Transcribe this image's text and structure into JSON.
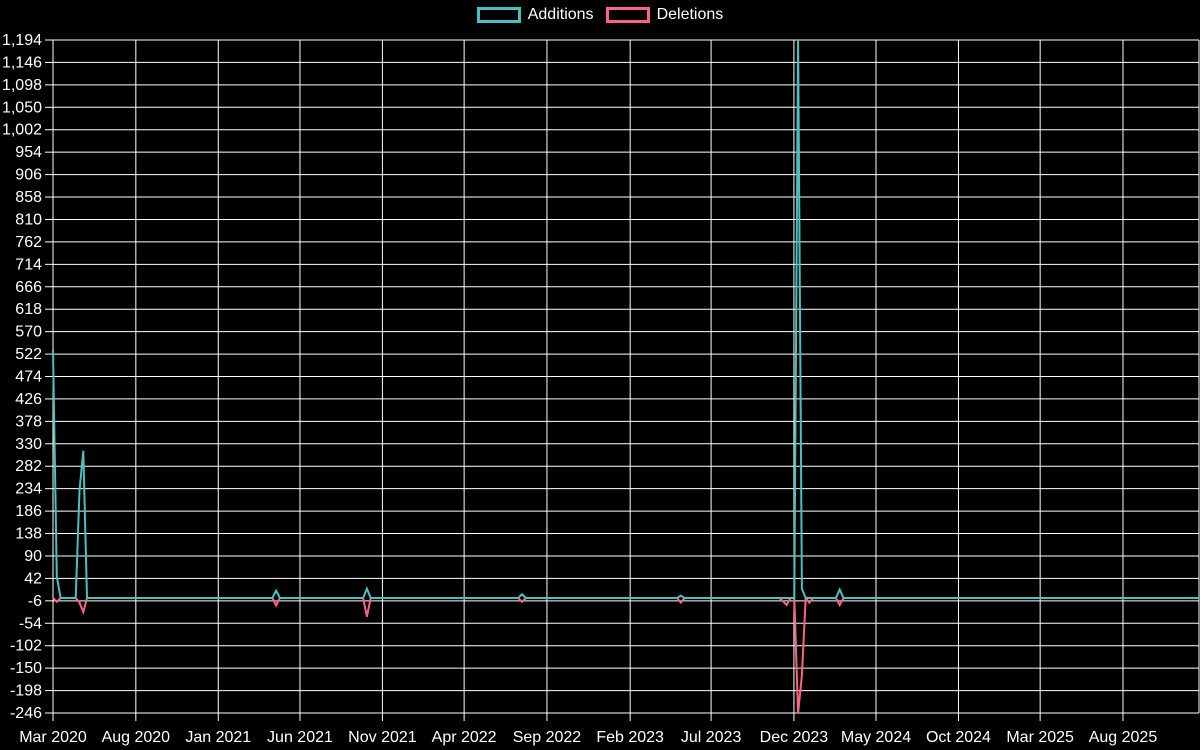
{
  "legend": {
    "additions_label": "Additions",
    "deletions_label": "Deletions"
  },
  "chart_data": {
    "type": "line",
    "title": "",
    "legend_position": "top",
    "background_color": "#000000",
    "grid_color": "#ffffff",
    "text_color": "#ffffff",
    "x_axis": {
      "unit": "week",
      "n_weeks": 304,
      "start_label": "Mar 2020",
      "end_label": "Aug 2025"
    },
    "y_axis": {
      "min": -246,
      "max": 1194,
      "step": 48
    },
    "y_tick_labels": [
      "1,194",
      "1,146",
      "1,098",
      "1,050",
      "1,002",
      "954",
      "906",
      "858",
      "810",
      "762",
      "714",
      "666",
      "618",
      "570",
      "522",
      "474",
      "426",
      "378",
      "330",
      "282",
      "234",
      "186",
      "138",
      "90",
      "42",
      "-6",
      "-54",
      "-102",
      "-150",
      "-198",
      "-246"
    ],
    "x_ticks": [
      {
        "label": "Mar 2020",
        "week": 0
      },
      {
        "label": "Aug 2020",
        "week": 21.9
      },
      {
        "label": "Jan 2021",
        "week": 43.7
      },
      {
        "label": "Jun 2021",
        "week": 65.3
      },
      {
        "label": "Nov 2021",
        "week": 87.1
      },
      {
        "label": "Apr 2022",
        "week": 108.7
      },
      {
        "label": "Sep 2022",
        "week": 130.6
      },
      {
        "label": "Feb 2023",
        "week": 152.6
      },
      {
        "label": "Jul 2023",
        "week": 174.0
      },
      {
        "label": "Dec 2023",
        "week": 195.9
      },
      {
        "label": "May 2024",
        "week": 217.6
      },
      {
        "label": "Oct 2024",
        "week": 239.4
      },
      {
        "label": "Mar 2025",
        "week": 261.0
      },
      {
        "label": "Aug 2025",
        "week": 282.9
      },
      {
        "label": "",
        "week": 303
      }
    ],
    "series": [
      {
        "name": "Additions",
        "color": "#4bc0c0",
        "baseline": 0,
        "points": [
          [
            0,
            530
          ],
          [
            1,
            46
          ],
          [
            7,
            230
          ],
          [
            8,
            315
          ],
          [
            59,
            16
          ],
          [
            83,
            20
          ],
          [
            124,
            8
          ],
          [
            166,
            5
          ],
          [
            197,
            1194
          ],
          [
            198,
            20
          ],
          [
            208,
            18
          ]
        ]
      },
      {
        "name": "Deletions",
        "color": "#ff6384",
        "baseline": 0,
        "points": [
          [
            1,
            -8
          ],
          [
            7,
            -10
          ],
          [
            8,
            -30
          ],
          [
            59,
            -16
          ],
          [
            83,
            -40
          ],
          [
            124,
            -8
          ],
          [
            166,
            -10
          ],
          [
            193,
            -7
          ],
          [
            194,
            -15
          ],
          [
            197,
            -246
          ],
          [
            198,
            -165
          ],
          [
            200,
            -10
          ],
          [
            208,
            -15
          ]
        ]
      }
    ]
  }
}
